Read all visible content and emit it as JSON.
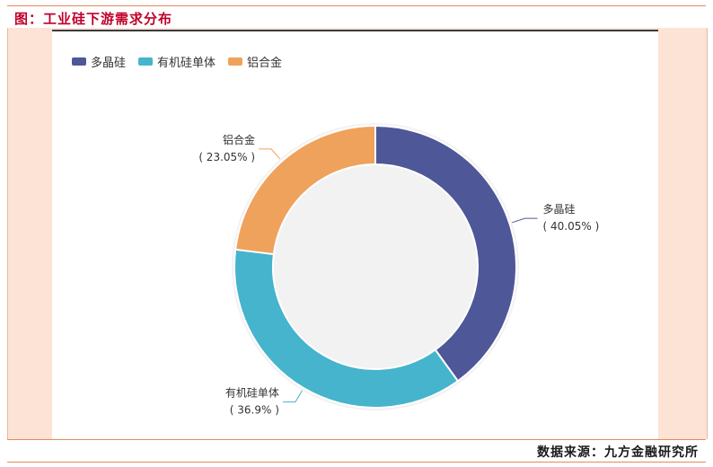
{
  "header": {
    "title": "图：工业硅下游需求分布"
  },
  "footer": {
    "source": "数据来源：九方金融研究所"
  },
  "chart_data": {
    "type": "pie",
    "donut": true,
    "legend_position": "top-left",
    "slices": [
      {
        "name": "多晶硅",
        "value": 40.05,
        "label": "( 40.05% )",
        "color": "#4e5797"
      },
      {
        "name": "有机硅单体",
        "value": 36.9,
        "label": "( 36.9% )",
        "color": "#45b4cc"
      },
      {
        "name": "铝合金",
        "value": 23.05,
        "label": "( 23.05% )",
        "color": "#efa25c"
      }
    ]
  }
}
